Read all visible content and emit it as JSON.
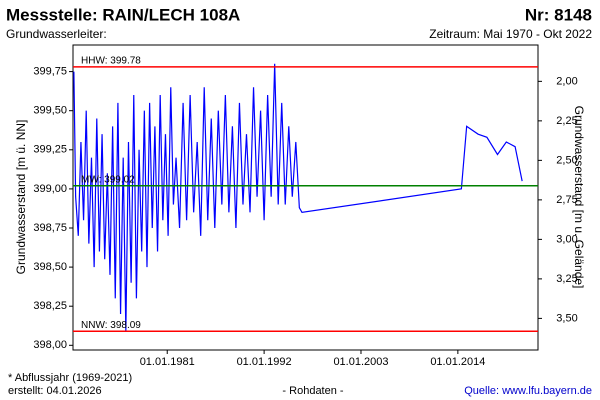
{
  "chart_data": {
    "type": "line",
    "title": "Messstelle: RAIN/LECH 108A",
    "number": "Nr: 8148",
    "subtitle": "Grundwasserleiter:",
    "period": "Zeitraum: Mai 1970 - Okt 2022",
    "ylabel": "Grundwasserstand [m ü. NN]",
    "y2label": "Grundwasserstand [m u. Gelände]",
    "footnote": "* Abflussjahr (1969-2021)",
    "created": "erstellt:  04.01.2026",
    "rawdata": "- Rohdaten -",
    "source": "Quelle:  www.lfu.bayern.de",
    "xlim": [
      1970.3,
      2023.1
    ],
    "xticks": [
      {
        "value": 1981,
        "label": "01.01.1981"
      },
      {
        "value": 1992,
        "label": "01.01.1992"
      },
      {
        "value": 2003,
        "label": "01.01.2003"
      },
      {
        "value": 2014,
        "label": "01.01.2014"
      }
    ],
    "ylim": [
      397.97,
      399.92
    ],
    "yticks": [
      {
        "value": 398.0,
        "label": "398,00"
      },
      {
        "value": 398.25,
        "label": "398,25"
      },
      {
        "value": 398.5,
        "label": "398,50"
      },
      {
        "value": 398.75,
        "label": "398,75"
      },
      {
        "value": 399.0,
        "label": "399,00"
      },
      {
        "value": 399.25,
        "label": "399,25"
      },
      {
        "value": 399.5,
        "label": "399,50"
      },
      {
        "value": 399.75,
        "label": "399,75"
      }
    ],
    "y2lim": [
      1.77,
      3.7
    ],
    "y2ticks": [
      {
        "value": 2.0,
        "label": "2,00"
      },
      {
        "value": 2.25,
        "label": "2,25"
      },
      {
        "value": 2.5,
        "label": "2,50"
      },
      {
        "value": 2.75,
        "label": "2,75"
      },
      {
        "value": 3.0,
        "label": "3,00"
      },
      {
        "value": 3.25,
        "label": "3,25"
      },
      {
        "value": 3.5,
        "label": "3,50"
      }
    ],
    "reference_lines": [
      {
        "label": "HHW: 399.78",
        "value": 399.78,
        "color": "#ff0000"
      },
      {
        "label": "MW: 399.02",
        "value": 399.02,
        "color": "#008000"
      },
      {
        "label": "NNW: 398.09",
        "value": 398.09,
        "color": "#ff0000"
      }
    ],
    "series": [
      {
        "color": "#0000ff",
        "x": [
          1970.4,
          1970.6,
          1970.9,
          1971.2,
          1971.5,
          1971.8,
          1972.1,
          1972.4,
          1972.7,
          1973.0,
          1973.3,
          1973.6,
          1973.9,
          1974.2,
          1974.5,
          1974.8,
          1975.1,
          1975.4,
          1975.7,
          1976.0,
          1976.3,
          1976.6,
          1976.9,
          1977.2,
          1977.5,
          1977.8,
          1978.1,
          1978.4,
          1978.7,
          1979.0,
          1979.3,
          1979.6,
          1979.9,
          1980.2,
          1980.5,
          1980.8,
          1981.1,
          1981.4,
          1981.7,
          1982.0,
          1982.4,
          1982.8,
          1983.2,
          1983.6,
          1984.0,
          1984.4,
          1984.8,
          1985.2,
          1985.6,
          1986.0,
          1986.4,
          1986.8,
          1987.2,
          1987.6,
          1988.0,
          1988.4,
          1988.8,
          1989.2,
          1989.6,
          1990.0,
          1990.4,
          1990.8,
          1991.2,
          1991.6,
          1992.0,
          1992.4,
          1992.8,
          1993.2,
          1993.6,
          1994.0,
          1994.4,
          1994.8,
          1995.2,
          1995.6,
          1996.0,
          1996.3,
          2014.4,
          2015.0,
          2016.3,
          2017.3,
          2018.5,
          2019.5,
          2020.5,
          2021.3
        ],
        "values": [
          399.75,
          398.95,
          398.7,
          399.3,
          398.8,
          399.5,
          398.65,
          399.2,
          398.5,
          399.45,
          398.6,
          399.35,
          398.55,
          399.1,
          398.45,
          399.4,
          398.3,
          399.55,
          398.2,
          399.2,
          398.09,
          399.3,
          398.4,
          399.6,
          398.3,
          399.25,
          398.6,
          399.5,
          398.5,
          399.55,
          398.75,
          399.4,
          398.6,
          399.6,
          398.8,
          399.35,
          398.7,
          399.65,
          398.9,
          399.2,
          398.75,
          399.55,
          398.8,
          399.6,
          398.85,
          399.3,
          398.7,
          399.65,
          398.8,
          399.45,
          398.75,
          399.5,
          398.9,
          399.6,
          398.85,
          399.4,
          398.75,
          399.55,
          398.9,
          399.35,
          398.85,
          399.65,
          398.95,
          399.5,
          398.8,
          399.6,
          398.95,
          399.8,
          398.9,
          399.55,
          398.9,
          399.4,
          398.95,
          399.3,
          398.88,
          398.85,
          399.0,
          399.4,
          399.35,
          399.33,
          399.22,
          399.3,
          399.27,
          399.05
        ]
      }
    ]
  }
}
